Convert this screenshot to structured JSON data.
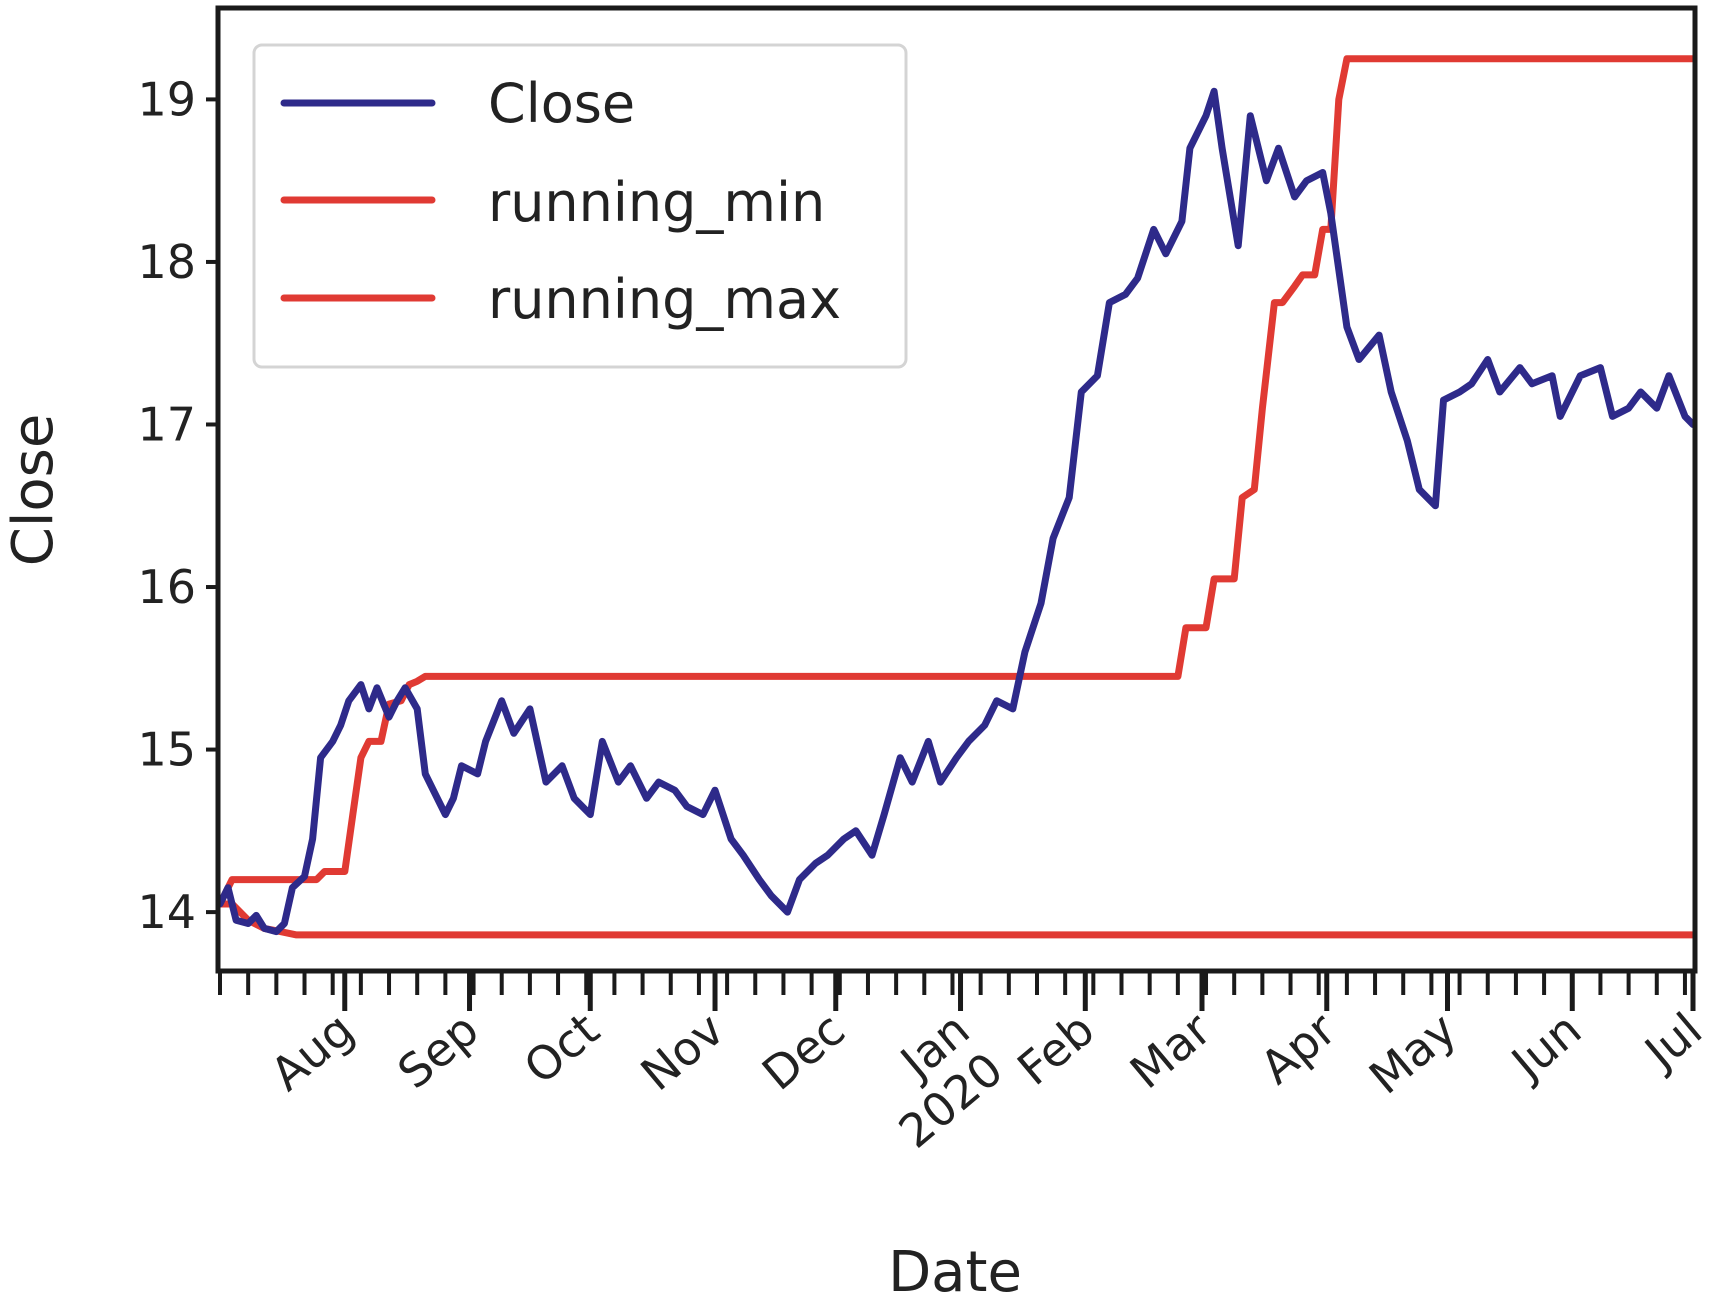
{
  "chart_data": {
    "type": "line",
    "xlabel": "Date",
    "ylabel": "Close",
    "xlim": [
      "2019-07-01",
      "2020-07-01"
    ],
    "ylim": [
      13.65,
      19.55
    ],
    "y_ticks": [
      14,
      15,
      16,
      17,
      18,
      19
    ],
    "x_ticks": [
      {
        "date": "2019-08-01",
        "label": "Aug"
      },
      {
        "date": "2019-09-01",
        "label": "Sep"
      },
      {
        "date": "2019-10-01",
        "label": "Oct"
      },
      {
        "date": "2019-11-01",
        "label": "Nov"
      },
      {
        "date": "2019-12-01",
        "label": "Dec"
      },
      {
        "date": "2020-01-01",
        "label": "Jan\n2020"
      },
      {
        "date": "2020-02-01",
        "label": "Feb"
      },
      {
        "date": "2020-03-01",
        "label": "Mar"
      },
      {
        "date": "2020-04-01",
        "label": "Apr"
      },
      {
        "date": "2020-05-01",
        "label": "May"
      },
      {
        "date": "2020-06-01",
        "label": "Jun"
      },
      {
        "date": "2020-07-01",
        "label": "Jul"
      }
    ],
    "grid": false,
    "legend": "upper-left",
    "series": [
      {
        "name": "Close",
        "color": "#2e2a8a",
        "x": [
          "2019-07-01",
          "2019-07-03",
          "2019-07-05",
          "2019-07-08",
          "2019-07-10",
          "2019-07-12",
          "2019-07-15",
          "2019-07-17",
          "2019-07-19",
          "2019-07-22",
          "2019-07-24",
          "2019-07-26",
          "2019-07-29",
          "2019-07-31",
          "2019-08-02",
          "2019-08-05",
          "2019-08-07",
          "2019-08-09",
          "2019-08-12",
          "2019-08-14",
          "2019-08-16",
          "2019-08-19",
          "2019-08-21",
          "2019-08-23",
          "2019-08-26",
          "2019-08-28",
          "2019-08-30",
          "2019-09-03",
          "2019-09-05",
          "2019-09-09",
          "2019-09-12",
          "2019-09-16",
          "2019-09-20",
          "2019-09-24",
          "2019-09-27",
          "2019-10-01",
          "2019-10-04",
          "2019-10-08",
          "2019-10-11",
          "2019-10-15",
          "2019-10-18",
          "2019-10-22",
          "2019-10-25",
          "2019-10-29",
          "2019-11-01",
          "2019-11-05",
          "2019-11-08",
          "2019-11-12",
          "2019-11-15",
          "2019-11-19",
          "2019-11-22",
          "2019-11-26",
          "2019-11-29",
          "2019-12-03",
          "2019-12-06",
          "2019-12-10",
          "2019-12-13",
          "2019-12-17",
          "2019-12-20",
          "2019-12-24",
          "2019-12-27",
          "2019-12-31",
          "2020-01-03",
          "2020-01-07",
          "2020-01-10",
          "2020-01-14",
          "2020-01-17",
          "2020-01-21",
          "2020-01-24",
          "2020-01-28",
          "2020-01-31",
          "2020-02-04",
          "2020-02-07",
          "2020-02-11",
          "2020-02-14",
          "2020-02-18",
          "2020-02-21",
          "2020-02-25",
          "2020-02-27",
          "2020-03-02",
          "2020-03-04",
          "2020-03-06",
          "2020-03-10",
          "2020-03-13",
          "2020-03-17",
          "2020-03-20",
          "2020-03-24",
          "2020-03-27",
          "2020-03-31",
          "2020-04-02",
          "2020-04-06",
          "2020-04-09",
          "2020-04-14",
          "2020-04-17",
          "2020-04-21",
          "2020-04-24",
          "2020-04-28",
          "2020-04-30",
          "2020-05-04",
          "2020-05-07",
          "2020-05-11",
          "2020-05-14",
          "2020-05-19",
          "2020-05-22",
          "2020-05-27",
          "2020-05-29",
          "2020-06-03",
          "2020-06-08",
          "2020-06-11",
          "2020-06-15",
          "2020-06-18",
          "2020-06-22",
          "2020-06-25",
          "2020-06-29",
          "2020-07-01"
        ],
        "y": [
          14.05,
          14.15,
          13.95,
          13.93,
          13.98,
          13.9,
          13.88,
          13.93,
          14.15,
          14.22,
          14.45,
          14.95,
          15.05,
          15.15,
          15.3,
          15.4,
          15.25,
          15.38,
          15.2,
          15.3,
          15.38,
          15.25,
          14.85,
          14.75,
          14.6,
          14.7,
          14.9,
          14.85,
          15.05,
          15.3,
          15.1,
          15.25,
          14.8,
          14.9,
          14.7,
          14.6,
          15.05,
          14.8,
          14.9,
          14.7,
          14.8,
          14.75,
          14.65,
          14.6,
          14.75,
          14.45,
          14.35,
          14.2,
          14.1,
          14.0,
          14.2,
          14.3,
          14.35,
          14.45,
          14.5,
          14.35,
          14.6,
          14.95,
          14.8,
          15.05,
          14.8,
          14.95,
          15.05,
          15.15,
          15.3,
          15.25,
          15.6,
          15.9,
          16.3,
          16.55,
          17.2,
          17.3,
          17.75,
          17.8,
          17.9,
          18.2,
          18.05,
          18.25,
          18.7,
          18.9,
          19.05,
          18.7,
          18.1,
          18.9,
          18.5,
          18.7,
          18.4,
          18.5,
          18.55,
          18.3,
          17.6,
          17.4,
          17.55,
          17.2,
          16.9,
          16.6,
          16.5,
          17.15,
          17.2,
          17.25,
          17.4,
          17.2,
          17.35,
          17.25,
          17.3,
          17.05,
          17.3,
          17.35,
          17.05,
          17.1,
          17.2,
          17.1,
          17.3,
          17.05,
          17.0
        ]
      },
      {
        "name": "running_min",
        "color": "#e03a33",
        "x": [
          "2019-07-01",
          "2019-07-04",
          "2019-07-08",
          "2019-07-12",
          "2019-07-16",
          "2019-07-20",
          "2020-07-01"
        ],
        "y": [
          14.05,
          14.05,
          13.95,
          13.9,
          13.88,
          13.86,
          13.86
        ]
      },
      {
        "name": "running_max",
        "color": "#e03a33",
        "x": [
          "2019-07-01",
          "2019-07-04",
          "2019-07-25",
          "2019-07-27",
          "2019-08-01",
          "2019-08-03",
          "2019-08-05",
          "2019-08-07",
          "2019-08-10",
          "2019-08-12",
          "2019-08-15",
          "2019-08-17",
          "2019-08-19",
          "2019-08-21",
          "2019-08-24",
          "2019-08-26",
          "2019-08-30",
          "2019-09-01",
          "2020-02-24",
          "2020-02-26",
          "2020-03-02",
          "2020-03-04",
          "2020-03-09",
          "2020-03-11",
          "2020-03-14",
          "2020-03-16",
          "2020-03-19",
          "2020-03-21",
          "2020-03-24",
          "2020-03-26",
          "2020-03-29",
          "2020-03-31",
          "2020-04-02",
          "2020-04-04",
          "2020-04-06",
          "2020-07-01"
        ],
        "y": [
          14.05,
          14.2,
          14.2,
          14.25,
          14.25,
          14.6,
          14.95,
          15.05,
          15.05,
          15.28,
          15.3,
          15.4,
          15.42,
          15.45,
          15.45,
          15.45,
          15.45,
          15.45,
          15.45,
          15.75,
          15.75,
          16.05,
          16.05,
          16.55,
          16.6,
          17.1,
          17.75,
          17.75,
          17.85,
          17.92,
          17.92,
          18.2,
          18.2,
          19.0,
          19.25,
          19.25
        ]
      }
    ]
  }
}
